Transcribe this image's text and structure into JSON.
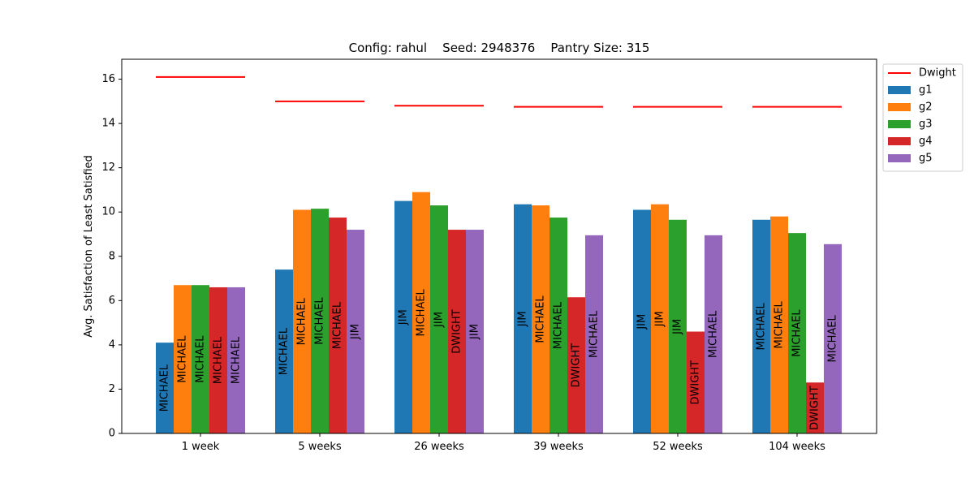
{
  "chart_data": {
    "type": "bar",
    "title": "Config: rahul    Seed: 2948376    Pantry Size: 315",
    "xlabel": "",
    "ylabel": "Avg. Satisfaction of Least Satisfied",
    "ylim": [
      0,
      16.9
    ],
    "yticks": [
      0,
      2,
      4,
      6,
      8,
      10,
      12,
      14,
      16
    ],
    "categories": [
      "1 week",
      "5 weeks",
      "26 weeks",
      "39 weeks",
      "52 weeks",
      "104 weeks"
    ],
    "series": [
      {
        "name": "g1",
        "color": "#1f77b4",
        "values": [
          4.1,
          7.4,
          10.5,
          10.35,
          10.1,
          9.65
        ],
        "labels": [
          "MICHAEL",
          "MICHAEL",
          "JIM",
          "JIM",
          "JIM",
          "MICHAEL"
        ]
      },
      {
        "name": "g2",
        "color": "#ff7f0e",
        "values": [
          6.7,
          10.1,
          10.9,
          10.3,
          10.35,
          9.8
        ],
        "labels": [
          "MICHAEL",
          "MICHAEL",
          "MICHAEL",
          "MICHAEL",
          "JIM",
          "MICHAEL"
        ]
      },
      {
        "name": "g3",
        "color": "#2ca02c",
        "values": [
          6.7,
          10.15,
          10.3,
          9.75,
          9.65,
          9.05
        ],
        "labels": [
          "MICHAEL",
          "MICHAEL",
          "JIM",
          "MICHAEL",
          "JIM",
          "MICHAEL"
        ]
      },
      {
        "name": "g4",
        "color": "#d62728",
        "values": [
          6.6,
          9.75,
          9.2,
          6.15,
          4.6,
          2.3
        ],
        "labels": [
          "MICHAEL",
          "MICHAEL",
          "DWIGHT",
          "DWIGHT",
          "DWIGHT",
          "DWIGHT"
        ]
      },
      {
        "name": "g5",
        "color": "#9467bd",
        "values": [
          6.6,
          9.2,
          9.2,
          8.95,
          8.95,
          8.55
        ],
        "labels": [
          "MICHAEL",
          "JIM",
          "JIM",
          "MICHAEL",
          "MICHAEL",
          "MICHAEL"
        ]
      }
    ],
    "reference_line": {
      "name": "Dwight",
      "color": "#ff0000",
      "values": [
        16.1,
        15.0,
        14.8,
        14.75,
        14.75,
        14.75
      ]
    },
    "legend_position": "outside-top-right",
    "grid": false
  }
}
